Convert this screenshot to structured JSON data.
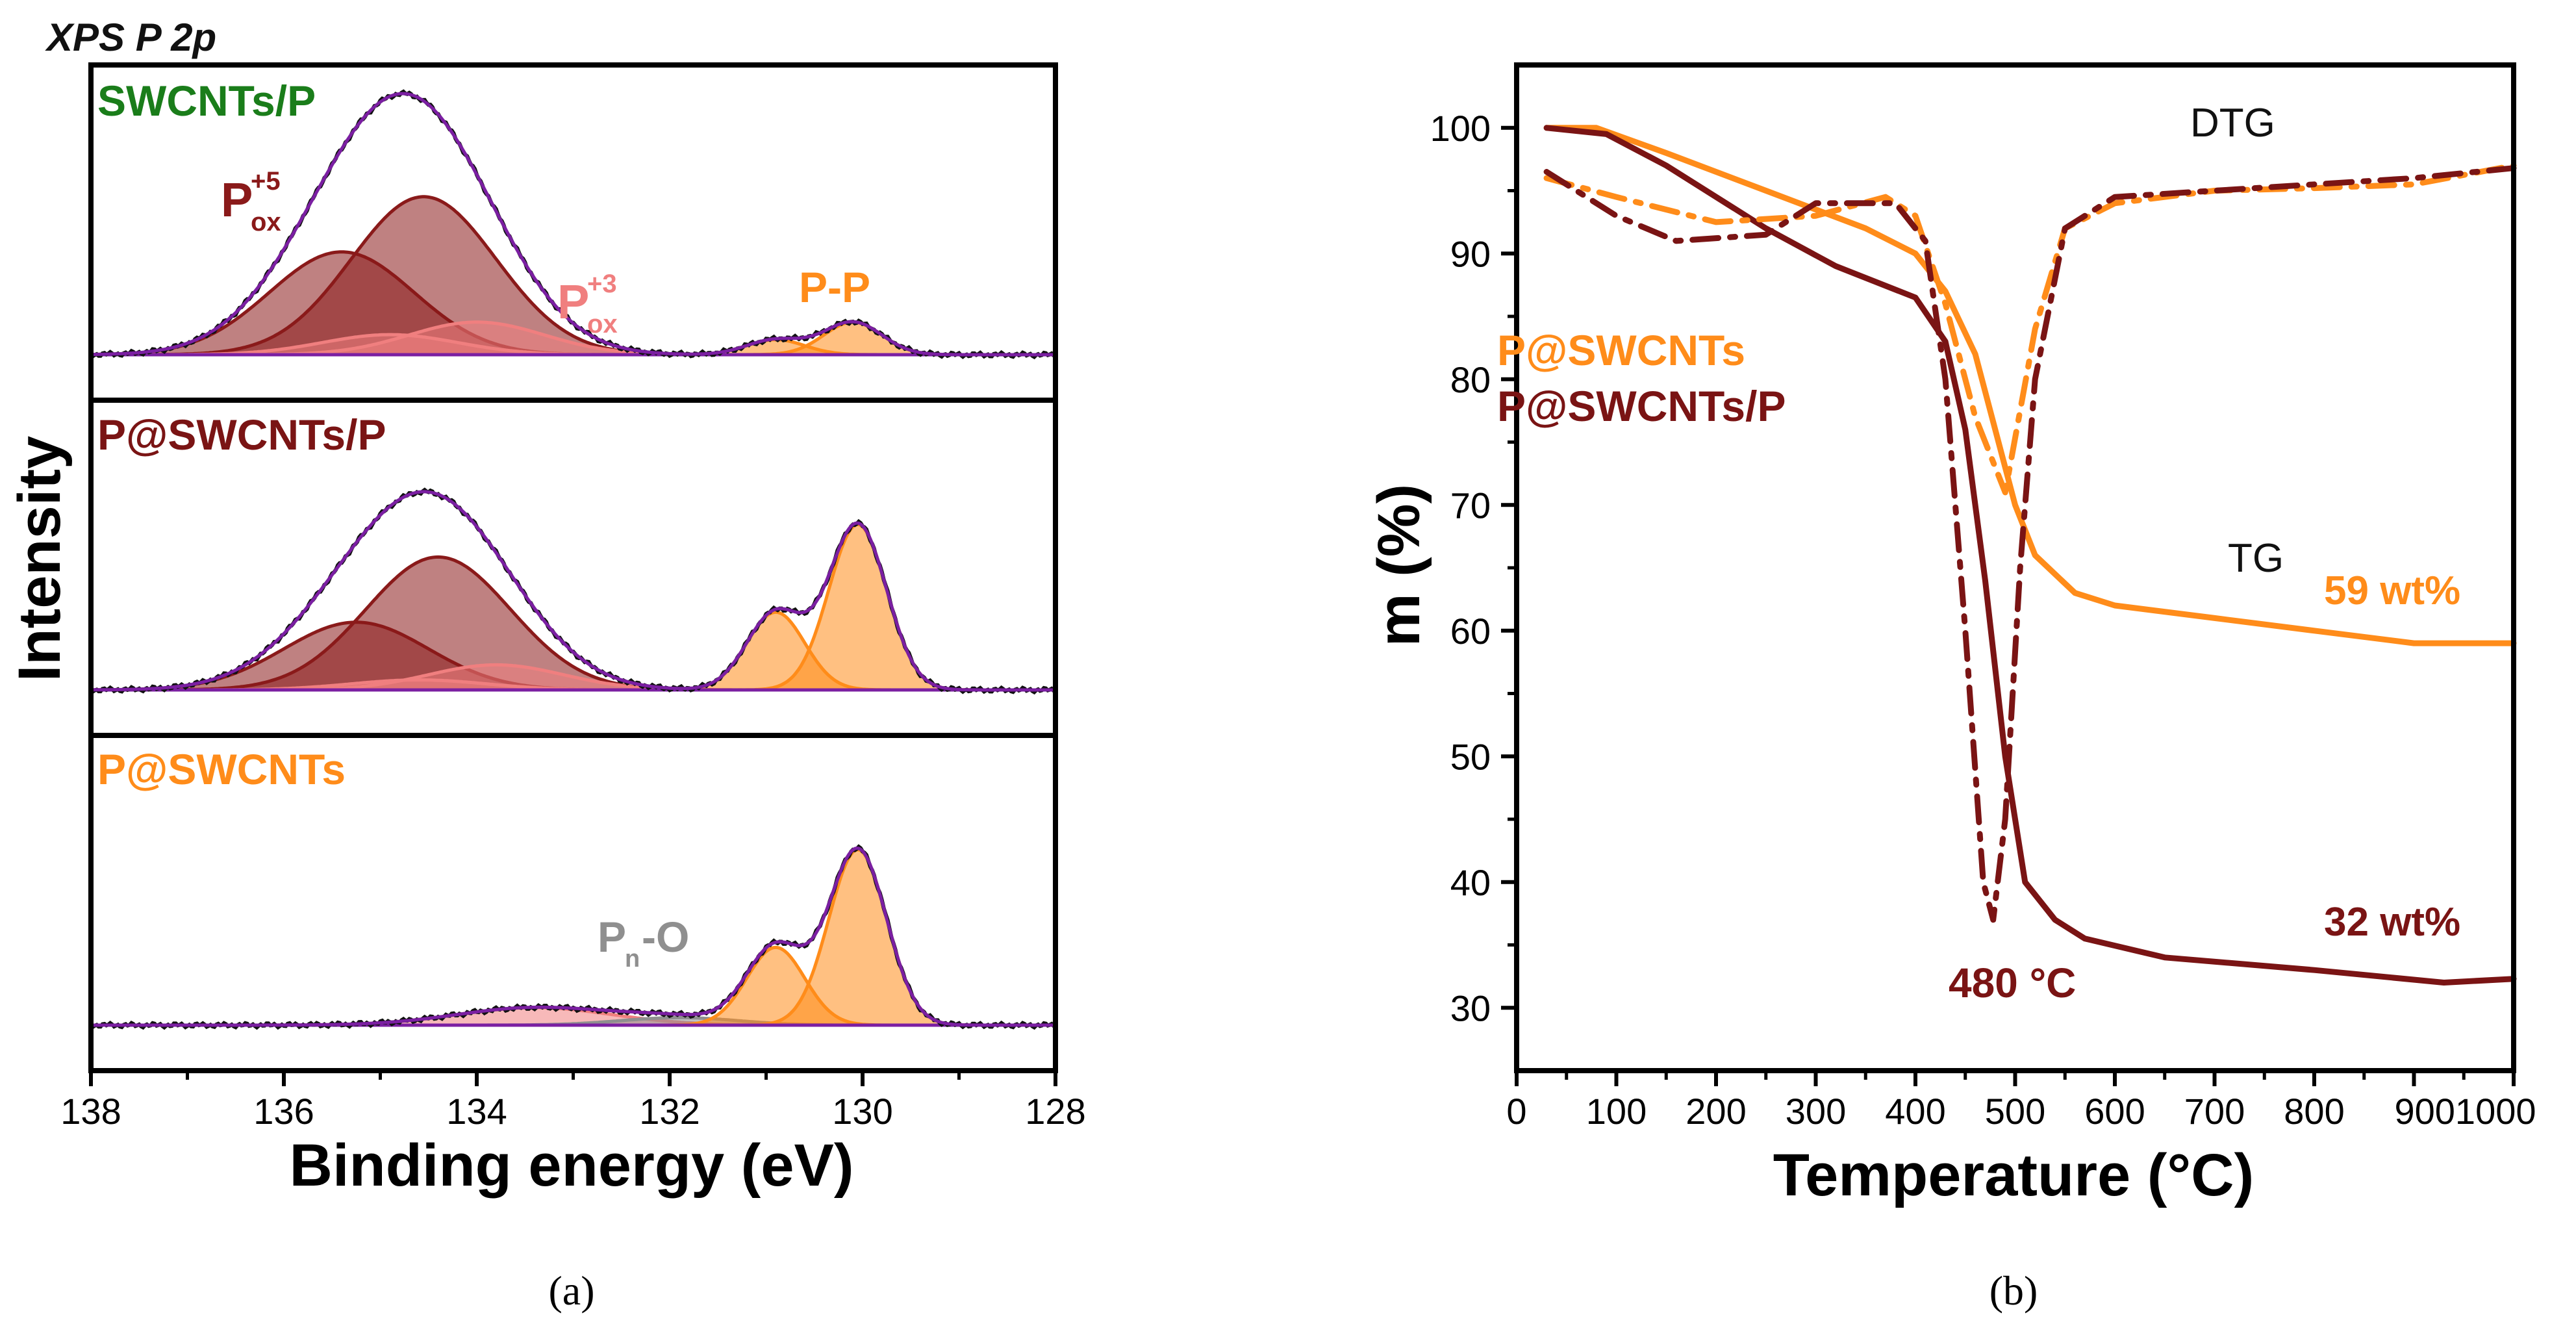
{
  "chart_data": [
    {
      "panel": "a",
      "type": "line",
      "title": "XPS P 2p",
      "xlabel": "Binding energy (eV)",
      "ylabel": "Intensity",
      "xlim": [
        138,
        128
      ],
      "x_ticks": [
        138,
        136,
        134,
        132,
        130,
        128
      ],
      "caption": "(a)",
      "subplots": [
        {
          "label": "SWCNTs/P",
          "label_color": "#1a7d1a",
          "peaks": [
            {
              "name": "P_ox^+5",
              "center": 135.4,
              "amplitude": 0.41,
              "width": 0.75,
              "color": "#8a1a1a"
            },
            {
              "name": "P_ox^+5",
              "center": 134.55,
              "amplitude": 0.63,
              "width": 0.75,
              "color": "#8a1a1a"
            },
            {
              "name": "P_ox^+3",
              "center": 134.9,
              "amplitude": 0.08,
              "width": 0.7,
              "color": "#f07f7f"
            },
            {
              "name": "P_ox^+3",
              "center": 134.0,
              "amplitude": 0.13,
              "width": 0.7,
              "color": "#f07f7f"
            },
            {
              "name": "P-P",
              "center": 130.9,
              "amplitude": 0.06,
              "width": 0.3,
              "color": "#ff8c1a"
            },
            {
              "name": "P-P",
              "center": 130.1,
              "amplitude": 0.13,
              "width": 0.3,
              "color": "#ff8c1a"
            }
          ],
          "annotations": [
            {
              "base": "P",
              "sub": "ox",
              "sup": "+5",
              "color": "#8a1a1a"
            },
            {
              "base": "P",
              "sub": "ox",
              "sup": "+3",
              "color": "#f07f7f"
            },
            {
              "text": "P-P",
              "color": "#ff8c1a"
            }
          ]
        },
        {
          "label": "P@SWCNTs/P",
          "label_color": "#7a1414",
          "peaks": [
            {
              "name": "P_ox^+5",
              "center": 135.25,
              "amplitude": 0.27,
              "width": 0.75,
              "color": "#8a1a1a"
            },
            {
              "name": "P_ox^+5",
              "center": 134.4,
              "amplitude": 0.53,
              "width": 0.75,
              "color": "#8a1a1a"
            },
            {
              "name": "P_ox^+3",
              "center": 134.6,
              "amplitude": 0.04,
              "width": 0.7,
              "color": "#f07f7f"
            },
            {
              "name": "P_ox^+3",
              "center": 133.8,
              "amplitude": 0.1,
              "width": 0.7,
              "color": "#f07f7f"
            },
            {
              "name": "P-P",
              "center": 130.9,
              "amplitude": 0.31,
              "width": 0.3,
              "color": "#ff8c1a"
            },
            {
              "name": "P-P",
              "center": 130.05,
              "amplitude": 0.66,
              "width": 0.3,
              "color": "#ff8c1a"
            }
          ]
        },
        {
          "label": "P@SWCNTs",
          "label_color": "#ff8c1a",
          "peaks": [
            {
              "name": "P_ox",
              "center": 133.4,
              "amplitude": 0.07,
              "width": 0.8,
              "color": "#f07f7f"
            },
            {
              "name": "P_n-O",
              "center": 131.9,
              "amplitude": 0.03,
              "width": 0.6,
              "color": "#8f8f8f"
            },
            {
              "name": "P-P",
              "center": 130.9,
              "amplitude": 0.31,
              "width": 0.3,
              "color": "#ff8c1a"
            },
            {
              "name": "P-P",
              "center": 130.05,
              "amplitude": 0.7,
              "width": 0.3,
              "color": "#ff8c1a"
            }
          ],
          "annotations": [
            {
              "base": "P",
              "sub": "n",
              "after": "-O",
              "color": "#8f8f8f"
            }
          ]
        }
      ]
    },
    {
      "panel": "b",
      "type": "line",
      "xlabel": "Temperature (°C)",
      "ylabel": "m (%)",
      "xlim": [
        0,
        1000
      ],
      "ylim": [
        25,
        105
      ],
      "x_tick_labels": [
        "0",
        "100",
        "200",
        "300",
        "400",
        "500",
        "600",
        "700",
        "800",
        "9001000"
      ],
      "y_ticks": [
        30,
        40,
        50,
        60,
        70,
        80,
        90,
        100
      ],
      "caption": "(b)",
      "legend": [
        {
          "text": "P@SWCNTs",
          "color": "#ff8c1a"
        },
        {
          "text": "P@SWCNTs/P",
          "color": "#7a1414"
        }
      ],
      "annotations": [
        {
          "text": "DTG",
          "color": "#111111"
        },
        {
          "text": "TG",
          "color": "#111111"
        },
        {
          "text": "59 wt%",
          "color": "#ff8c1a"
        },
        {
          "text": "32 wt%",
          "color": "#7a1414"
        },
        {
          "text": "480 °C",
          "color": "#7a1414"
        }
      ],
      "series": [
        {
          "name": "P@SWCNTs TG",
          "color": "#ff8c1a",
          "style": "solid",
          "x": [
            30,
            80,
            150,
            250,
            350,
            400,
            430,
            460,
            480,
            500,
            520,
            560,
            600,
            700,
            800,
            900,
            1000
          ],
          "y": [
            100,
            100,
            98,
            95,
            92,
            90,
            87,
            82,
            76,
            70,
            66,
            63,
            62,
            61,
            60,
            59,
            59
          ]
        },
        {
          "name": "P@SWCNTs/P TG",
          "color": "#7a1414",
          "style": "solid",
          "x": [
            30,
            90,
            150,
            250,
            320,
            400,
            430,
            450,
            470,
            490,
            510,
            540,
            570,
            650,
            800,
            930,
            1000
          ],
          "y": [
            100,
            99.5,
            97,
            92,
            89,
            86.5,
            83,
            76,
            64,
            50,
            40,
            37,
            35.5,
            34,
            33,
            32,
            32.3
          ]
        },
        {
          "name": "P@SWCNTs DTG",
          "color": "#ff8c1a",
          "style": "dashdot",
          "x": [
            30,
            100,
            200,
            300,
            370,
            400,
            430,
            460,
            490,
            520,
            550,
            600,
            700,
            800,
            900,
            1000
          ],
          "y": [
            96,
            94.5,
            92.5,
            93,
            94.5,
            93,
            86,
            77,
            71,
            84,
            92,
            94,
            95,
            95.2,
            95.5,
            97
          ]
        },
        {
          "name": "P@SWCNTs/P DTG",
          "color": "#7a1414",
          "style": "dashdot",
          "x": [
            30,
            100,
            160,
            250,
            300,
            380,
            410,
            430,
            450,
            468,
            478,
            490,
            505,
            520,
            550,
            600,
            700,
            800,
            900,
            1000
          ],
          "y": [
            96.5,
            93,
            91,
            91.5,
            94,
            94,
            91,
            80,
            60,
            40,
            37,
            45,
            65,
            80,
            92,
            94.5,
            95,
            95.5,
            96,
            96.8
          ]
        }
      ]
    }
  ]
}
